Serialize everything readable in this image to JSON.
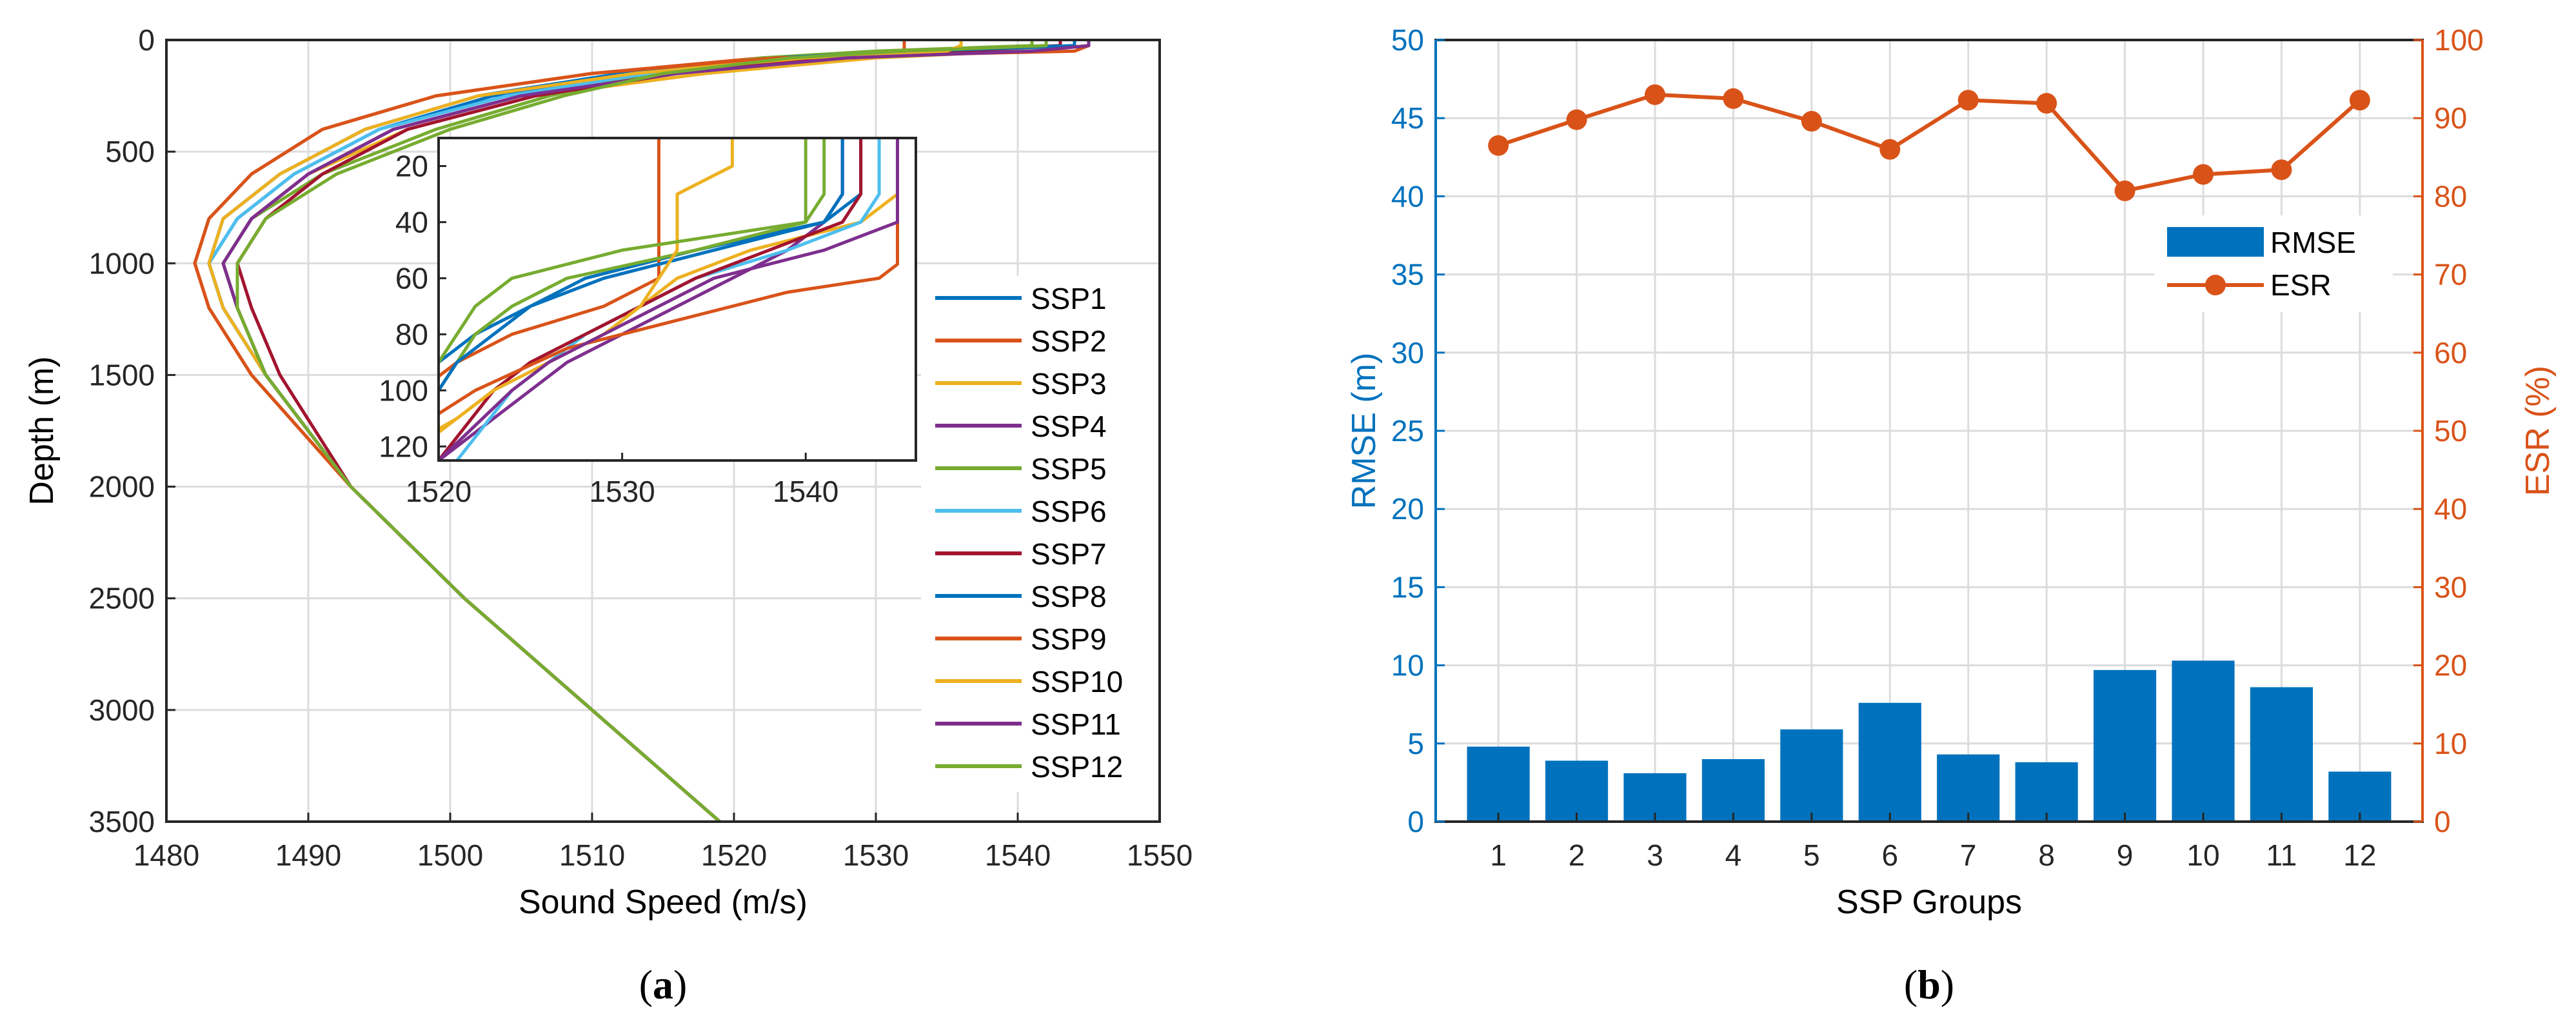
{
  "colors": {
    "ssp": [
      "#0072BD",
      "#D95319",
      "#EDB120",
      "#7E2F8E",
      "#77AC30",
      "#4DBEEE",
      "#A2142F",
      "#0072BD",
      "#D95319",
      "#EDB120",
      "#7E2F8E",
      "#77AC30"
    ],
    "rmse_bar": "#0072BD",
    "esr_line": "#D95319",
    "grid": "#dcdcdc",
    "axis": "#262626"
  },
  "panel_a": {
    "label_prefix": "(",
    "label": "a",
    "label_suffix": ")"
  },
  "panel_b": {
    "label_prefix": "(",
    "label": "b",
    "label_suffix": ")"
  },
  "chart_data": [
    {
      "id": "ssp-profiles",
      "type": "line",
      "xlabel": "Sound Speed (m/s)",
      "ylabel": "Depth (m)",
      "xlim": [
        1480,
        1550
      ],
      "ylim": [
        0,
        3500
      ],
      "y_reversed": true,
      "x_ticks": [
        1480,
        1490,
        1500,
        1510,
        1520,
        1530,
        1540,
        1550
      ],
      "y_ticks": [
        0,
        500,
        1000,
        1500,
        2000,
        2500,
        3000,
        3500
      ],
      "grid": true,
      "legend_position": "east",
      "series": [
        {
          "name": "SSP1",
          "depth": [
            0,
            25,
            50,
            80,
            150,
            250,
            400,
            600,
            800,
            1000,
            1200,
            1500,
            2000,
            2500,
            3000,
            3500
          ],
          "speed": [
            1543,
            1543,
            1534,
            1524,
            1513,
            1503,
            1495,
            1489,
            1485,
            1483,
            1484,
            1487,
            1493,
            1501,
            1510,
            1519
          ]
        },
        {
          "name": "SSP2",
          "depth": [
            0,
            25,
            50,
            80,
            150,
            250,
            400,
            600,
            800,
            1000,
            1200,
            1500,
            2000,
            2500,
            3000,
            3500
          ],
          "speed": [
            1532,
            1532,
            1532,
            1522,
            1510,
            1499,
            1491,
            1486,
            1483,
            1482,
            1483,
            1486,
            1493,
            1501,
            1510,
            1519
          ]
        },
        {
          "name": "SSP3",
          "depth": [
            0,
            25,
            50,
            80,
            150,
            250,
            400,
            600,
            800,
            1000,
            1200,
            1500,
            2000,
            2500,
            3000,
            3500
          ],
          "speed": [
            1545,
            1545,
            1540,
            1530,
            1518,
            1506,
            1497,
            1490,
            1486,
            1484,
            1485,
            1487,
            1493,
            1501,
            1510,
            1519
          ]
        },
        {
          "name": "SSP4",
          "depth": [
            0,
            25,
            50,
            80,
            150,
            250,
            400,
            600,
            800,
            1000,
            1200,
            1500,
            2000,
            2500,
            3000,
            3500
          ],
          "speed": [
            1542,
            1542,
            1536,
            1527,
            1516,
            1505,
            1496,
            1490,
            1486,
            1484,
            1485,
            1487,
            1493,
            1501,
            1510,
            1519
          ]
        },
        {
          "name": "SSP5",
          "depth": [
            0,
            25,
            50,
            80,
            150,
            250,
            400,
            600,
            800,
            1000,
            1200,
            1500,
            2000,
            2500,
            3000,
            3500
          ],
          "speed": [
            1541,
            1541,
            1530,
            1522,
            1514,
            1507,
            1499,
            1491,
            1486,
            1484,
            1485,
            1487,
            1493,
            1501,
            1510,
            1519
          ]
        },
        {
          "name": "SSP6",
          "depth": [
            0,
            25,
            50,
            80,
            150,
            250,
            400,
            600,
            800,
            1000,
            1200,
            1500,
            2000,
            2500,
            3000,
            3500
          ],
          "speed": [
            1544,
            1544,
            1536,
            1525,
            1514,
            1504,
            1495,
            1489,
            1485,
            1483,
            1484,
            1487,
            1493,
            1501,
            1510,
            1519
          ]
        },
        {
          "name": "SSP7",
          "depth": [
            0,
            25,
            50,
            80,
            150,
            250,
            400,
            600,
            800,
            1000,
            1200,
            1500,
            2000,
            2500,
            3000,
            3500
          ],
          "speed": [
            1543,
            1543,
            1536,
            1526,
            1516,
            1506,
            1497,
            1491,
            1487,
            1485,
            1486,
            1488,
            1493,
            1501,
            1510,
            1519
          ]
        },
        {
          "name": "SSP8",
          "depth": [
            0,
            25,
            50,
            80,
            150,
            250,
            400,
            600,
            800,
            1000,
            1200,
            1500,
            2000,
            2500,
            3000,
            3500
          ],
          "speed": [
            1544,
            1544,
            1533,
            1523,
            1512,
            1502,
            1494,
            1488,
            1484,
            1483,
            1484,
            1487,
            1493,
            1501,
            1510,
            1519
          ]
        },
        {
          "name": "SSP9",
          "depth": [
            0,
            25,
            50,
            80,
            150,
            250,
            400,
            600,
            800,
            1000,
            1200,
            1500,
            2000,
            2500,
            3000,
            3500
          ],
          "speed": [
            1545,
            1545,
            1544,
            1523,
            1510,
            1499,
            1491,
            1486,
            1483,
            1482,
            1483,
            1486,
            1493,
            1501,
            1510,
            1519
          ]
        },
        {
          "name": "SSP10",
          "depth": [
            0,
            25,
            50,
            80,
            150,
            250,
            400,
            600,
            800,
            1000,
            1200,
            1500,
            2000,
            2500,
            3000,
            3500
          ],
          "speed": [
            1536,
            1536,
            1535,
            1525,
            1513,
            1502,
            1494,
            1488,
            1484,
            1483,
            1484,
            1487,
            1493,
            1501,
            1510,
            1519
          ]
        },
        {
          "name": "SSP11",
          "depth": [
            0,
            25,
            50,
            80,
            150,
            250,
            400,
            600,
            800,
            1000,
            1200,
            1500,
            2000,
            2500,
            3000,
            3500
          ],
          "speed": [
            1545,
            1545,
            1541,
            1528,
            1516,
            1505,
            1496,
            1490,
            1486,
            1484,
            1485,
            1487,
            1493,
            1501,
            1510,
            1519
          ]
        },
        {
          "name": "SSP12",
          "depth": [
            0,
            25,
            50,
            80,
            150,
            250,
            400,
            600,
            800,
            1000,
            1200,
            1500,
            2000,
            2500,
            3000,
            3500
          ],
          "speed": [
            1542,
            1542,
            1532,
            1524,
            1515,
            1508,
            1500,
            1492,
            1487,
            1485,
            1485,
            1487,
            1493,
            1501,
            1510,
            1519
          ]
        }
      ],
      "inset": {
        "xlim": [
          1520,
          1546
        ],
        "ylim": [
          10,
          125
        ],
        "x_ticks": [
          1520,
          1530,
          1540
        ],
        "y_ticks": [
          20,
          40,
          60,
          80,
          100,
          120
        ],
        "series": [
          {
            "name": "SSP1",
            "depth": [
              0,
              30,
              40,
              50,
              60,
              70,
              80,
              90,
              100,
              125
            ],
            "speed": [
              1543,
              1543,
              1541,
              1534,
              1528,
              1525,
              1522,
              1520,
              1518,
              1514
            ]
          },
          {
            "name": "SSP2",
            "depth": [
              0,
              20,
              30,
              50,
              60,
              70,
              80,
              90,
              100,
              125
            ],
            "speed": [
              1532,
              1532,
              1532,
              1532,
              1532,
              1529,
              1524,
              1521,
              1519,
              1515
            ]
          },
          {
            "name": "SSP3",
            "depth": [
              0,
              20,
              30,
              40,
              50,
              60,
              70,
              80,
              90,
              100,
              110,
              125
            ],
            "speed": [
              1545,
              1545,
              1545,
              1543,
              1537,
              1533,
              1531,
              1528,
              1525,
              1523,
              1521,
              1517
            ]
          },
          {
            "name": "SSP4",
            "depth": [
              0,
              30,
              40,
              50,
              60,
              70,
              80,
              90,
              100,
              125
            ],
            "speed": [
              1542,
              1542,
              1541,
              1539,
              1536,
              1533,
              1530,
              1527,
              1525,
              1520
            ]
          },
          {
            "name": "SSP5",
            "depth": [
              0,
              30,
              40,
              50,
              60,
              70,
              80,
              90,
              100,
              125
            ],
            "speed": [
              1540,
              1540,
              1540,
              1534,
              1527,
              1524,
              1522,
              1521,
              1520,
              1518
            ]
          },
          {
            "name": "SSP6",
            "depth": [
              0,
              30,
              40,
              50,
              60,
              70,
              80,
              90,
              100,
              125
            ],
            "speed": [
              1544,
              1544,
              1543,
              1539,
              1534,
              1531,
              1528,
              1526,
              1524,
              1521
            ]
          },
          {
            "name": "SSP7",
            "depth": [
              0,
              30,
              40,
              50,
              60,
              70,
              80,
              90,
              100,
              125
            ],
            "speed": [
              1543,
              1543,
              1542,
              1538,
              1534,
              1531,
              1528,
              1525,
              1523,
              1520
            ]
          },
          {
            "name": "SSP8",
            "depth": [
              0,
              30,
              40,
              50,
              60,
              70,
              80,
              90,
              100,
              125
            ],
            "speed": [
              1542,
              1542,
              1541,
              1535,
              1529,
              1525,
              1523,
              1521,
              1520,
              1517
            ]
          },
          {
            "name": "SSP9",
            "depth": [
              0,
              20,
              40,
              55,
              60,
              65,
              75,
              85,
              100,
              125
            ],
            "speed": [
              1545,
              1545,
              1545,
              1545,
              1544,
              1539,
              1533,
              1527,
              1522,
              1516
            ]
          },
          {
            "name": "SSP10",
            "depth": [
              0,
              20,
              30,
              40,
              50,
              60,
              70,
              80,
              90,
              100,
              125
            ],
            "speed": [
              1536,
              1536,
              1533,
              1533,
              1533,
              1532,
              1531,
              1529,
              1526,
              1523,
              1518
            ]
          },
          {
            "name": "SSP11",
            "depth": [
              0,
              20,
              30,
              40,
              50,
              60,
              70,
              80,
              90,
              100,
              125
            ],
            "speed": [
              1545,
              1545,
              1545,
              1545,
              1541,
              1535,
              1532,
              1529,
              1526,
              1524,
              1520
            ]
          },
          {
            "name": "SSP12",
            "depth": [
              0,
              30,
              40,
              50,
              60,
              70,
              80,
              90,
              100,
              125
            ],
            "speed": [
              1541,
              1541,
              1540,
              1530,
              1524,
              1522,
              1521,
              1520,
              1519,
              1517
            ]
          }
        ]
      }
    },
    {
      "id": "rmse-esr",
      "type": "bar",
      "xlabel": "SSP Groups",
      "ylabel_left": "RMSE (m)",
      "ylabel_right": "ESR (%)",
      "categories": [
        1,
        2,
        3,
        4,
        5,
        6,
        7,
        8,
        9,
        10,
        11,
        12
      ],
      "ylim_left": [
        0,
        50
      ],
      "ylim_right": [
        0,
        100
      ],
      "y_ticks_left": [
        0,
        5,
        10,
        15,
        20,
        25,
        30,
        35,
        40,
        45,
        50
      ],
      "y_ticks_right": [
        0,
        10,
        20,
        30,
        40,
        50,
        60,
        70,
        80,
        90,
        100
      ],
      "grid": true,
      "legend_position": "upper-right",
      "series": [
        {
          "name": "RMSE",
          "type": "bar",
          "axis": "left",
          "values": [
            4.8,
            3.9,
            3.1,
            4.0,
            5.9,
            7.6,
            4.3,
            3.8,
            9.7,
            10.3,
            8.6,
            3.2
          ]
        },
        {
          "name": "ESR",
          "type": "line",
          "axis": "right",
          "values": [
            86.5,
            89.8,
            93.0,
            92.5,
            89.6,
            86.0,
            92.3,
            91.9,
            80.7,
            82.8,
            83.4,
            92.3
          ]
        }
      ]
    }
  ]
}
